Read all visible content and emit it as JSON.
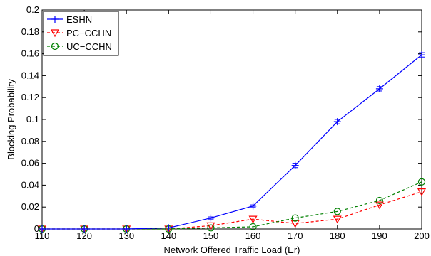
{
  "chart_data": {
    "type": "line",
    "title": "",
    "xlabel": "Network Offered Traffic Load (Er)",
    "ylabel": "Blocking Probability",
    "xlim": [
      110,
      200
    ],
    "ylim": [
      0,
      0.2
    ],
    "x_ticks": [
      110,
      120,
      130,
      140,
      150,
      160,
      170,
      180,
      190,
      200
    ],
    "y_ticks": [
      0,
      0.02,
      0.04,
      0.06,
      0.08,
      0.1,
      0.12,
      0.14,
      0.16,
      0.18,
      0.2
    ],
    "y_tick_labels": [
      "0",
      "0.02",
      "0.04",
      "0.06",
      "0.08",
      "0.1",
      "0.12",
      "0.14",
      "0.16",
      "0.18",
      "0.2"
    ],
    "grid": false,
    "legend_position": "top-left",
    "x": [
      110,
      120,
      130,
      140,
      150,
      160,
      170,
      180,
      190,
      200
    ],
    "series": [
      {
        "name": "ESHN",
        "color": "#0000ff",
        "line": "solid",
        "marker": "plus",
        "values": [
          0,
          0,
          0,
          0.001,
          0.01,
          0.021,
          0.058,
          0.098,
          0.128,
          0.159
        ],
        "errors": [
          0,
          0,
          0,
          0,
          0.001,
          0.001,
          0.002,
          0.002,
          0.002,
          0.002
        ]
      },
      {
        "name": "PC−CCHN",
        "color": "#ff0000",
        "line": "dashed",
        "marker": "triangle-down",
        "values": [
          0,
          0,
          0,
          0,
          0.003,
          0.009,
          0.005,
          0.009,
          0.022,
          0.034
        ],
        "errors": [
          0,
          0,
          0,
          0,
          0,
          0,
          0,
          0,
          0,
          0
        ]
      },
      {
        "name": "UC−CCHN",
        "color": "#008000",
        "line": "dashed",
        "marker": "circle",
        "values": [
          0,
          0,
          0,
          0,
          0.001,
          0.002,
          0.01,
          0.016,
          0.026,
          0.043
        ],
        "errors": [
          0,
          0,
          0,
          0,
          0,
          0,
          0,
          0,
          0,
          0
        ]
      }
    ]
  }
}
